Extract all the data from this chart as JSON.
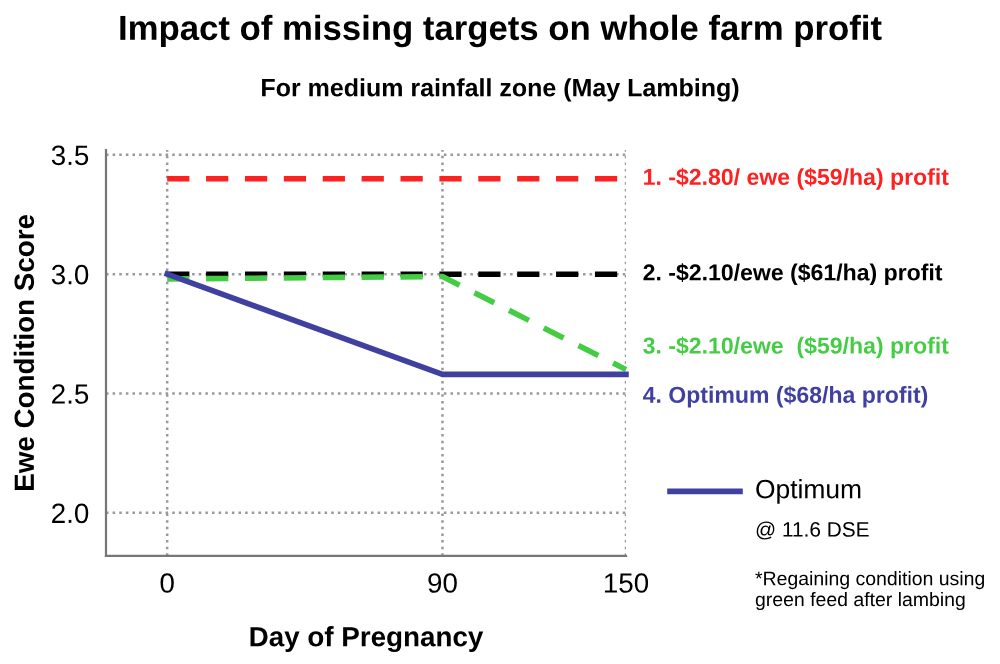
{
  "chart_data": {
    "type": "line",
    "title": "Impact of missing targets on whole farm profit",
    "subtitle": "For medium rainfall zone (May Lambing)",
    "xlabel": "Day of Pregnancy",
    "ylabel": "Ewe Condition Score",
    "x": [
      0,
      90,
      150
    ],
    "series": [
      {
        "name": "1. -$2.80/ ewe ($59/ha) profit",
        "color": "#ff2020",
        "values": [
          3.4,
          3.4,
          3.4
        ],
        "line_style": "dashed"
      },
      {
        "name": "2. -$2.10/ewe ($61/ha) profit",
        "color": "#000000",
        "values": [
          3.0,
          3.0,
          3.0
        ],
        "line_style": "dashed"
      },
      {
        "name": "3. -$2.10/ewe  ($59/ha) profit",
        "color": "#44cc44",
        "values": [
          2.98,
          2.99,
          2.6
        ],
        "line_style": "dashed"
      },
      {
        "name": "4. Optimum ($68/ha profit)",
        "color": "#4040a0",
        "values": [
          3.0,
          2.58,
          2.58
        ],
        "line_style": "solid"
      }
    ],
    "xlim": [
      -20,
      150
    ],
    "ylim": [
      1.82,
      3.52
    ],
    "xticks": [
      0,
      90,
      150
    ],
    "yticks": [
      {
        "value": 2.0,
        "label": "2.0"
      },
      {
        "value": 2.5,
        "label": "2.5"
      },
      {
        "value": 3.0,
        "label": "3.0"
      },
      {
        "value": 3.5,
        "label": "3.5"
      }
    ],
    "grid": true,
    "marker": "none",
    "annotations": [
      "Optimum",
      "@ 11.6 DSE",
      "*Regaining condition using green feed after lambing"
    ]
  }
}
